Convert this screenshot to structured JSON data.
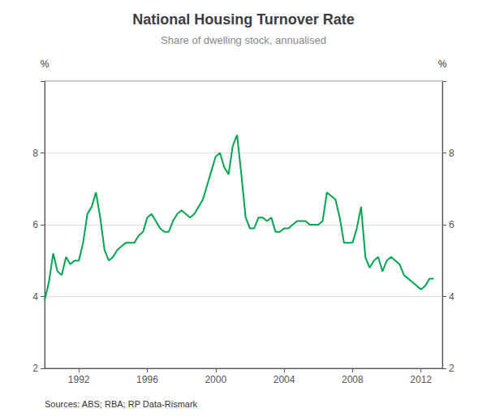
{
  "chart_data": {
    "type": "line",
    "title": "National Housing Turnover Rate",
    "subtitle": "Share of dwelling stock, annualised",
    "source": "Sources: ABS; RBA; RP Data-Rismark",
    "ylabel": "%",
    "y2label": "%",
    "color": "#00a550",
    "x": [
      1990.0,
      1990.25,
      1990.5,
      1990.75,
      1991.0,
      1991.25,
      1991.5,
      1991.75,
      1992.0,
      1992.25,
      1992.5,
      1992.75,
      1993.0,
      1993.25,
      1993.5,
      1993.75,
      1994.0,
      1994.25,
      1994.5,
      1994.75,
      1995.0,
      1995.25,
      1995.5,
      1995.75,
      1996.0,
      1996.25,
      1996.5,
      1996.75,
      1997.0,
      1997.25,
      1997.5,
      1997.75,
      1998.0,
      1998.25,
      1998.5,
      1998.75,
      1999.0,
      1999.25,
      1999.5,
      1999.75,
      2000.0,
      2000.25,
      2000.5,
      2000.75,
      2001.0,
      2001.25,
      2001.5,
      2001.75,
      2002.0,
      2002.25,
      2002.5,
      2002.75,
      2003.0,
      2003.25,
      2003.5,
      2003.75,
      2004.0,
      2004.25,
      2004.5,
      2004.75,
      2005.0,
      2005.25,
      2005.5,
      2005.75,
      2006.0,
      2006.25,
      2006.5,
      2006.75,
      2007.0,
      2007.25,
      2007.5,
      2007.75,
      2008.0,
      2008.25,
      2008.5,
      2008.75,
      2009.0,
      2009.25,
      2009.5,
      2009.75,
      2010.0,
      2010.25,
      2010.5,
      2010.75,
      2011.0,
      2011.25,
      2011.5,
      2011.75,
      2012.0,
      2012.25,
      2012.5,
      2012.75
    ],
    "values": [
      3.9,
      4.4,
      5.2,
      4.7,
      4.6,
      5.1,
      4.9,
      5.0,
      5.0,
      5.5,
      6.3,
      6.5,
      6.9,
      6.2,
      5.3,
      5.0,
      5.1,
      5.3,
      5.4,
      5.5,
      5.5,
      5.5,
      5.7,
      5.8,
      6.2,
      6.3,
      6.1,
      5.9,
      5.8,
      5.8,
      6.1,
      6.3,
      6.4,
      6.3,
      6.2,
      6.3,
      6.5,
      6.7,
      7.1,
      7.5,
      7.9,
      8.0,
      7.6,
      7.4,
      8.2,
      8.5,
      7.4,
      6.2,
      5.9,
      5.9,
      6.2,
      6.2,
      6.1,
      6.2,
      5.8,
      5.8,
      5.9,
      5.9,
      6.0,
      6.1,
      6.1,
      6.1,
      6.0,
      6.0,
      6.0,
      6.1,
      6.9,
      6.8,
      6.7,
      6.2,
      5.5,
      5.5,
      5.5,
      5.9,
      6.5,
      5.1,
      4.8,
      5.0,
      5.1,
      4.7,
      5.0,
      5.1,
      5.0,
      4.9,
      4.6,
      4.5,
      4.4,
      4.3,
      4.2,
      4.3,
      4.5,
      4.5
    ],
    "xlim": [
      1990.0,
      2013.25
    ],
    "xticks": [
      1992,
      1996,
      2000,
      2004,
      2008,
      2012
    ],
    "ylim": [
      2,
      10
    ],
    "yticks": [
      2,
      4,
      6,
      8,
      {
        "value": 10,
        "label": ""
      }
    ],
    "y2lim": [
      2,
      10
    ],
    "y2ticks": [
      2,
      4,
      6,
      8,
      {
        "value": 10,
        "label": ""
      }
    ],
    "grid": true
  }
}
